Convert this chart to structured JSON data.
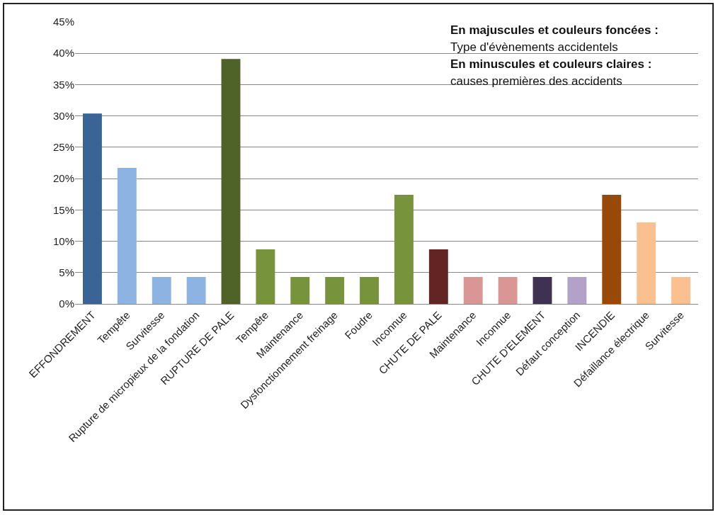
{
  "chart_data": {
    "type": "bar",
    "categories": [
      "EFFONDREMENT",
      "Tempête",
      "Survitesse",
      "Rupture de micropieux de la fondation",
      "RUPTURE DE PALE",
      "Tempête",
      "Maintenance",
      "Dysfonctionnement freinage",
      "Foudre",
      "Inconnue",
      "CHUTE DE PALE",
      "Maintenance",
      "Inconnue",
      "CHUTE D'ELEMENT",
      "Défaut conception",
      "INCENDIE",
      "Défaillance électrique",
      "Survitesse"
    ],
    "values": [
      30.4,
      21.7,
      4.3,
      4.3,
      39.1,
      8.7,
      4.3,
      4.3,
      4.3,
      17.4,
      8.7,
      4.3,
      4.3,
      4.3,
      4.3,
      17.4,
      13.0,
      4.3
    ],
    "colors": [
      "#3a6496",
      "#8db3e2",
      "#8db3e2",
      "#8db3e2",
      "#4f6228",
      "#77933c",
      "#77933c",
      "#77933c",
      "#77933c",
      "#77933c",
      "#632523",
      "#d99694",
      "#d99694",
      "#3f3151",
      "#b3a2c7",
      "#984807",
      "#fac090",
      "#fac090"
    ],
    "ylim": [
      0,
      45
    ],
    "yticks": [
      {
        "value": 0,
        "label": "0%"
      },
      {
        "value": 5,
        "label": "5%"
      },
      {
        "value": 10,
        "label": "10%"
      },
      {
        "value": 15,
        "label": "15%"
      },
      {
        "value": 20,
        "label": "20%"
      },
      {
        "value": 25,
        "label": "25%"
      },
      {
        "value": 30,
        "label": "30%"
      },
      {
        "value": 35,
        "label": "35%"
      },
      {
        "value": 40,
        "label": "40%"
      },
      {
        "value": 45,
        "label": "45%"
      }
    ],
    "grid": "y",
    "annotations": [
      "En majuscules et couleurs foncées :",
      "Type d'évènements accidentels",
      "En minuscules et couleurs claires :",
      "causes premières des accidents"
    ]
  }
}
